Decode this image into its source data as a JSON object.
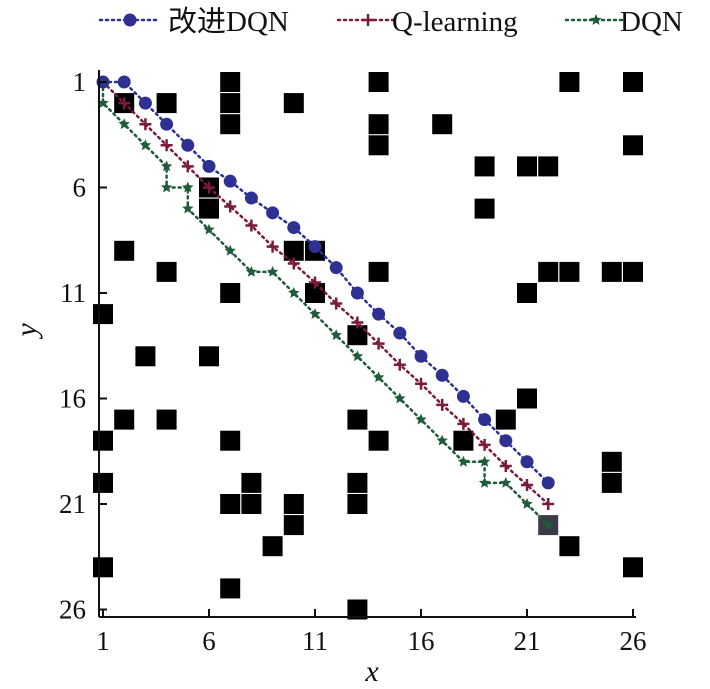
{
  "chart_data": {
    "type": "scatter",
    "title": "",
    "xlabel": "x",
    "ylabel": "y",
    "xlim": [
      1,
      26
    ],
    "ylim": [
      26,
      1
    ],
    "y_axis_inverted": true,
    "grid": false,
    "legend_position": "top",
    "x_ticks": [
      "1",
      "6",
      "11",
      "16",
      "21",
      "26"
    ],
    "y_ticks": [
      "1",
      "6",
      "11",
      "16",
      "21",
      "26"
    ],
    "colors": {
      "improved_dqn": "#2e3192",
      "q_learning": "#7b1a3a",
      "dqn": "#1e5c3a",
      "obstacle": "#000000"
    },
    "obstacles": [
      [
        2,
        2
      ],
      [
        4,
        2
      ],
      [
        7,
        1
      ],
      [
        7,
        2
      ],
      [
        7,
        3
      ],
      [
        10,
        2
      ],
      [
        14,
        1
      ],
      [
        14,
        3
      ],
      [
        14,
        4
      ],
      [
        17,
        3
      ],
      [
        23,
        1
      ],
      [
        26,
        1
      ],
      [
        26,
        4
      ],
      [
        6,
        6
      ],
      [
        6,
        7
      ],
      [
        19,
        5
      ],
      [
        19,
        7
      ],
      [
        21,
        5
      ],
      [
        22,
        5
      ],
      [
        2,
        9
      ],
      [
        4,
        10
      ],
      [
        7,
        11
      ],
      [
        10,
        9
      ],
      [
        11,
        9
      ],
      [
        11,
        11
      ],
      [
        14,
        10
      ],
      [
        21,
        11
      ],
      [
        22,
        10
      ],
      [
        23,
        10
      ],
      [
        25,
        10
      ],
      [
        26,
        10
      ],
      [
        1,
        12
      ],
      [
        3,
        14
      ],
      [
        6,
        14
      ],
      [
        13,
        13
      ],
      [
        2,
        17
      ],
      [
        4,
        17
      ],
      [
        1,
        18
      ],
      [
        7,
        18
      ],
      [
        13,
        17
      ],
      [
        14,
        18
      ],
      [
        18,
        18
      ],
      [
        20,
        17
      ],
      [
        21,
        16
      ],
      [
        1,
        20
      ],
      [
        8,
        20
      ],
      [
        7,
        21
      ],
      [
        8,
        21
      ],
      [
        10,
        21
      ],
      [
        10,
        22
      ],
      [
        13,
        20
      ],
      [
        13,
        21
      ],
      [
        9,
        23
      ],
      [
        23,
        23
      ],
      [
        25,
        19
      ],
      [
        25,
        20
      ],
      [
        1,
        24
      ],
      [
        7,
        25
      ],
      [
        13,
        26
      ],
      [
        26,
        24
      ]
    ],
    "series": [
      {
        "name": "改进DQN",
        "marker": "circle",
        "points": [
          [
            1,
            1
          ],
          [
            2,
            1
          ],
          [
            3,
            2
          ],
          [
            4,
            3
          ],
          [
            5,
            4
          ],
          [
            6,
            5
          ],
          [
            7,
            5.7
          ],
          [
            8,
            6.5
          ],
          [
            9,
            7.2
          ],
          [
            10,
            7.9
          ],
          [
            11,
            8.8
          ],
          [
            12,
            9.8
          ],
          [
            13,
            11
          ],
          [
            14,
            12
          ],
          [
            15,
            12.9
          ],
          [
            16,
            14
          ],
          [
            17,
            14.9
          ],
          [
            18,
            15.9
          ],
          [
            19,
            17
          ],
          [
            20,
            18
          ],
          [
            21,
            19
          ],
          [
            22,
            20
          ]
        ]
      },
      {
        "name": "Q-learning",
        "marker": "plus",
        "points": [
          [
            1,
            1
          ],
          [
            2,
            2
          ],
          [
            3,
            3
          ],
          [
            4,
            4
          ],
          [
            5,
            5
          ],
          [
            6,
            6
          ],
          [
            7,
            6.9
          ],
          [
            8,
            7.8
          ],
          [
            9,
            8.8
          ],
          [
            10,
            9.6
          ],
          [
            11,
            10.5
          ],
          [
            12,
            11.5
          ],
          [
            13,
            12.4
          ],
          [
            14,
            13.4
          ],
          [
            15,
            14.4
          ],
          [
            16,
            15.3
          ],
          [
            17,
            16.3
          ],
          [
            18,
            17.2
          ],
          [
            19,
            18.2
          ],
          [
            20,
            19.2
          ],
          [
            21,
            20.1
          ],
          [
            22,
            21
          ]
        ]
      },
      {
        "name": "DQN",
        "marker": "star",
        "points": [
          [
            1,
            1
          ],
          [
            1,
            2
          ],
          [
            2,
            3
          ],
          [
            3,
            4
          ],
          [
            4,
            5
          ],
          [
            4,
            6
          ],
          [
            5,
            6
          ],
          [
            5,
            7
          ],
          [
            6,
            8
          ],
          [
            7,
            9
          ],
          [
            8,
            10
          ],
          [
            9,
            10
          ],
          [
            10,
            11
          ],
          [
            11,
            12
          ],
          [
            12,
            13
          ],
          [
            13,
            14
          ],
          [
            14,
            15
          ],
          [
            15,
            16
          ],
          [
            16,
            17
          ],
          [
            17,
            18
          ],
          [
            18,
            19
          ],
          [
            19,
            19
          ],
          [
            19,
            20
          ],
          [
            20,
            20
          ],
          [
            21,
            21
          ],
          [
            22,
            22
          ]
        ]
      }
    ]
  }
}
